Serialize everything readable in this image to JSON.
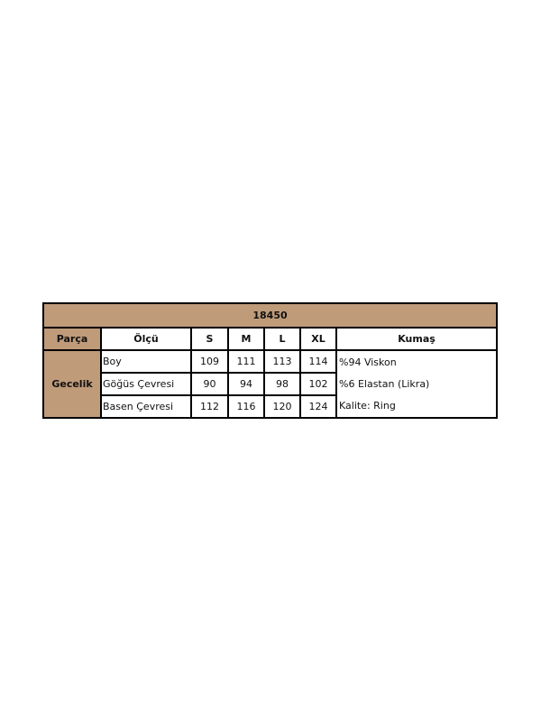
{
  "title": "18450",
  "headers": [
    "Parça",
    "Ölçü",
    "S",
    "M",
    "L",
    "XL",
    "Kumaş"
  ],
  "part": "Gecelik",
  "rows": [
    {
      "label": "Boy",
      "values": [
        "109",
        "111",
        "113",
        "114"
      ]
    },
    {
      "label": "Göğüs Çevresi",
      "values": [
        "90",
        "94",
        "98",
        "102"
      ]
    },
    {
      "label": "Basen Çevresi",
      "values": [
        "112",
        "116",
        "120",
        "124"
      ]
    }
  ],
  "fabric": [
    "%94 Viskon",
    "%6 Elastan (Likra)",
    "Kalite: Ring"
  ],
  "colors": {
    "header_fill": "#bf9b7a",
    "border": "#000000"
  }
}
